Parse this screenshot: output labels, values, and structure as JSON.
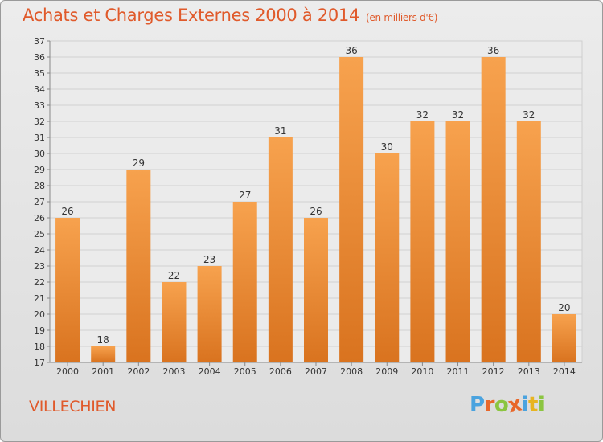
{
  "title": "Achats et Charges Externes 2000 à 2014",
  "subtitle": "(en milliers d'€)",
  "commune": "VILLECHIEN",
  "logo": {
    "letters": [
      "P",
      "r",
      "o",
      "x",
      "i",
      "t",
      "i"
    ],
    "colors": [
      "#4aa3df",
      "#e8672a",
      "#8bc540",
      "#e8672a",
      "#4aa3df",
      "#e8b420",
      "#8bc540"
    ]
  },
  "colors": {
    "bar_top": "#f7a24e",
    "bar_bottom": "#d9731f",
    "title": "#e05a2b"
  },
  "chart_data": {
    "type": "bar",
    "categories": [
      "2000",
      "2001",
      "2002",
      "2003",
      "2004",
      "2005",
      "2006",
      "2007",
      "2008",
      "2009",
      "2010",
      "2011",
      "2012",
      "2013",
      "2014"
    ],
    "values": [
      26,
      18,
      29,
      22,
      23,
      27,
      31,
      26,
      36,
      30,
      32,
      32,
      36,
      32,
      20
    ],
    "ylim": [
      17,
      37
    ],
    "yticks": [
      17,
      18,
      19,
      20,
      21,
      22,
      23,
      24,
      25,
      26,
      27,
      28,
      29,
      30,
      31,
      32,
      33,
      34,
      35,
      36,
      37
    ],
    "grid": true,
    "xlabel": "",
    "ylabel": ""
  }
}
